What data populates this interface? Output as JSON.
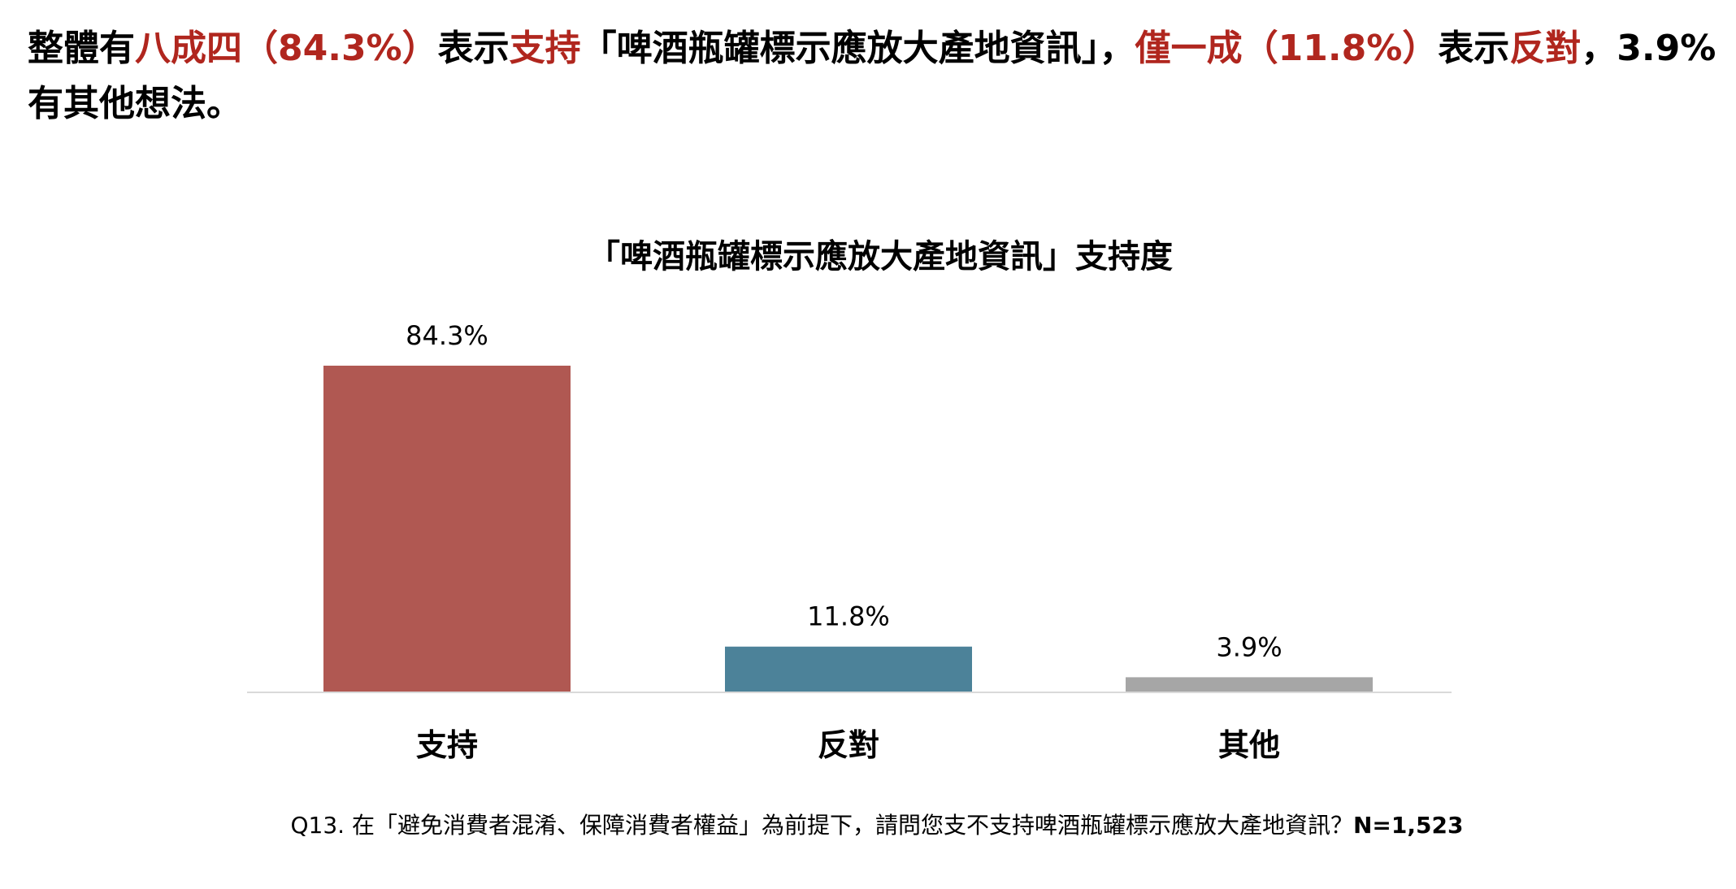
{
  "headline": {
    "parts": [
      {
        "text": "整體有",
        "highlight": false
      },
      {
        "text": "八成四（84.3%）",
        "highlight": true
      },
      {
        "text": "表示",
        "highlight": false
      },
      {
        "text": "支持",
        "highlight": true
      },
      {
        "text": "「啤酒瓶罐標示應放大產地資訊」，",
        "highlight": false
      },
      {
        "text": "僅一成（11.8%）",
        "highlight": true
      },
      {
        "text": "表示",
        "highlight": false
      },
      {
        "text": "反對",
        "highlight": true
      },
      {
        "text": "，3.9%有其他想法。",
        "highlight": false
      }
    ]
  },
  "footnote": {
    "question": "Q13. 在「避免消費者混淆、保障消費者權益」為前提下，請問您支不支持啤酒瓶罐標示應放大產地資訊？",
    "sample": "N=1,523"
  },
  "colors": {
    "highlight": "#b0261e",
    "support": "#b05852",
    "oppose": "#4c8299",
    "other": "#a6a6a6",
    "axis": "#d9d9d9"
  },
  "chart_data": {
    "type": "bar",
    "title": "「啤酒瓶罐標示應放大產地資訊」支持度",
    "categories": [
      "支持",
      "反對",
      "其他"
    ],
    "values": [
      84.3,
      11.8,
      3.9
    ],
    "data_labels": [
      "84.3%",
      "11.8%",
      "3.9%"
    ],
    "bar_colors": [
      "#b05852",
      "#4c8299",
      "#a6a6a6"
    ],
    "xlabel": "",
    "ylabel": "",
    "unit": "%",
    "ylim": [
      0,
      100
    ],
    "grid": false,
    "legend": "none"
  }
}
